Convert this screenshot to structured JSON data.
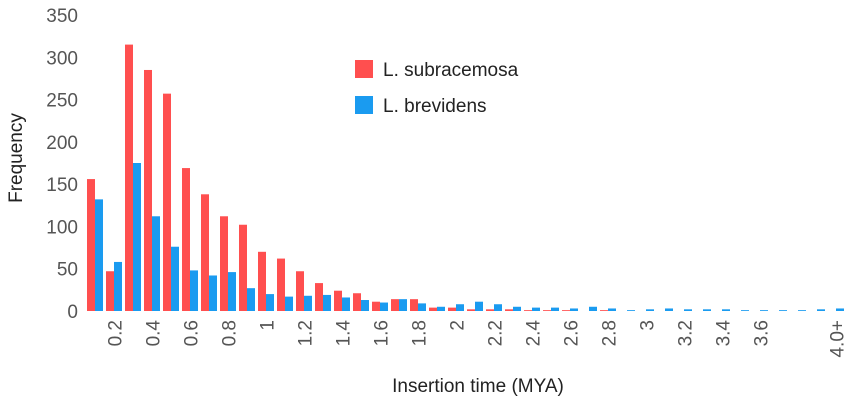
{
  "chart_data": {
    "type": "bar",
    "title": "",
    "xlabel": "Insertion time (MYA)",
    "ylabel": "Frequency",
    "ylim": [
      0,
      350
    ],
    "yticks": [
      0,
      50,
      100,
      150,
      200,
      250,
      300,
      350
    ],
    "grid": false,
    "legend_position": "top-center",
    "bin_count": 40,
    "x_tick_labels": [
      {
        "bin": 2,
        "label": "0.2"
      },
      {
        "bin": 4,
        "label": "0.4"
      },
      {
        "bin": 6,
        "label": "0.6"
      },
      {
        "bin": 8,
        "label": "0.8"
      },
      {
        "bin": 10,
        "label": "1"
      },
      {
        "bin": 12,
        "label": "1.2"
      },
      {
        "bin": 14,
        "label": "1.4"
      },
      {
        "bin": 16,
        "label": "1.6"
      },
      {
        "bin": 18,
        "label": "1.8"
      },
      {
        "bin": 20,
        "label": "2"
      },
      {
        "bin": 22,
        "label": "2.2"
      },
      {
        "bin": 24,
        "label": "2.4"
      },
      {
        "bin": 26,
        "label": "2.6"
      },
      {
        "bin": 28,
        "label": "2.8"
      },
      {
        "bin": 30,
        "label": "3"
      },
      {
        "bin": 32,
        "label": "3.2"
      },
      {
        "bin": 34,
        "label": "3.4"
      },
      {
        "bin": 36,
        "label": "3.6"
      },
      {
        "bin": 40,
        "label": "4.0+"
      }
    ],
    "series": [
      {
        "name": "L. subracemosa",
        "color": "#ff4f4f",
        "values": [
          156,
          47,
          315,
          285,
          257,
          169,
          138,
          112,
          102,
          70,
          62,
          47,
          33,
          24,
          21,
          11,
          14,
          14,
          4,
          4,
          2,
          2,
          2,
          1,
          1,
          1,
          0,
          1,
          0,
          0,
          0,
          0,
          0,
          0,
          0,
          0,
          0,
          0,
          0,
          0
        ]
      },
      {
        "name": "L. brevidens",
        "color": "#1a9bf0",
        "values": [
          132,
          58,
          175,
          112,
          76,
          48,
          42,
          46,
          27,
          20,
          17,
          18,
          19,
          16,
          13,
          10,
          14,
          9,
          5,
          8,
          11,
          8,
          5,
          4,
          4,
          3,
          5,
          3,
          1,
          2,
          3,
          2,
          2,
          2,
          1,
          1,
          1,
          1,
          2,
          3
        ]
      }
    ]
  }
}
